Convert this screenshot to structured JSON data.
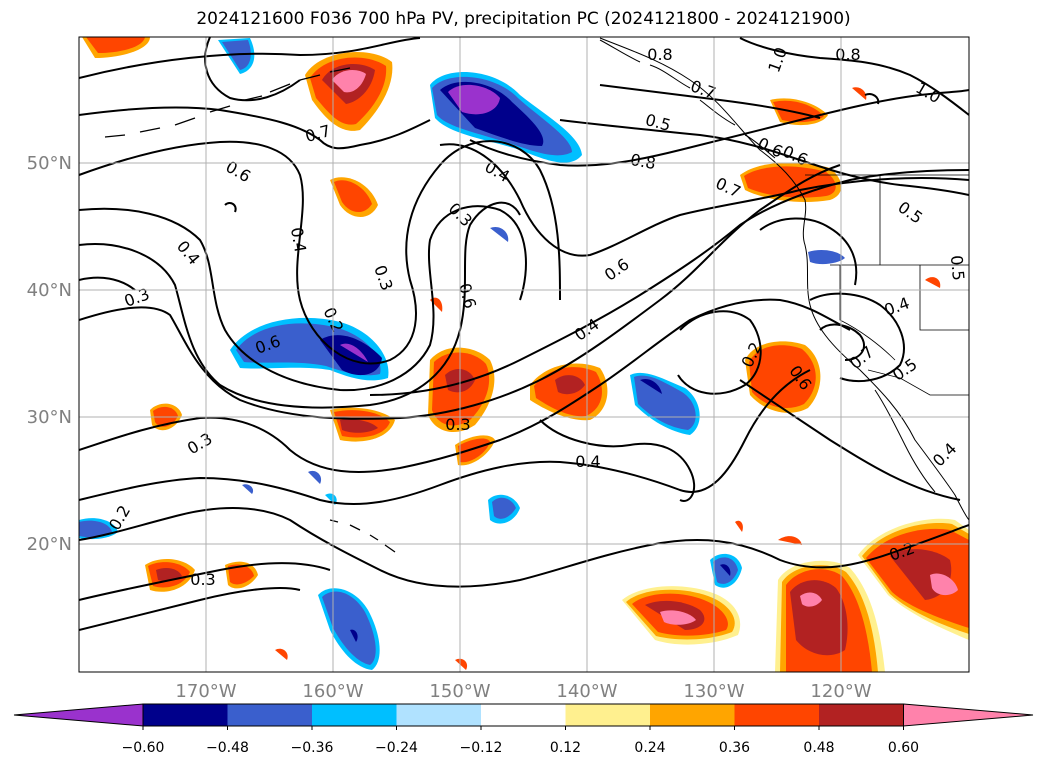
{
  "title": "2024121600 F036 700 hPa PV, precipitation PC (2024121800 - 2024121900)",
  "lat_labels": [
    "50°N",
    "40°N",
    "30°N",
    "20°N"
  ],
  "lon_labels": [
    "170°W",
    "160°W",
    "150°W",
    "140°W",
    "130°W",
    "120°W"
  ],
  "colorbar": {
    "ticks": [
      "−0.60",
      "−0.48",
      "−0.36",
      "−0.24",
      "−0.12",
      "0.12",
      "0.24",
      "0.36",
      "0.48",
      "0.60"
    ],
    "colors": [
      "#9a32cd",
      "#00008b",
      "#3a5fcd",
      "#00bfff",
      "#b0e2ff",
      "#ffffff",
      "#fff08f",
      "#ffa500",
      "#ff4500",
      "#b22222",
      "#ff82ab"
    ]
  },
  "contour_labels": [
    "0.8",
    "1.0",
    "0.8",
    "1.0",
    "0.7",
    "0.7",
    "0.5",
    "0.6",
    "0.8",
    "0.6",
    "0.7",
    "0.5",
    "0.6",
    "0.4",
    "0.3",
    "0.4",
    "0.4",
    "0.3",
    "0.3",
    "0.6",
    "0.6",
    "0.4",
    "0.2",
    "0.5",
    "0.2",
    "0.6",
    "0.7",
    "0.6",
    "0.4",
    "0.5",
    "0.3",
    "0.3",
    "0.4",
    "0.4",
    "0.2",
    "0.2",
    "0.3"
  ],
  "colors": {
    "axis_label": "#808080",
    "grid": "#b0b0b0"
  }
}
